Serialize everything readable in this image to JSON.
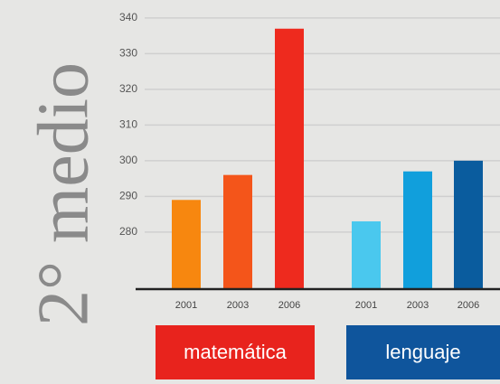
{
  "chart_data": {
    "type": "bar",
    "side_label": "2° medio",
    "categories": [
      "2001",
      "2003",
      "2006",
      "2001",
      "2003",
      "2006"
    ],
    "values": [
      289,
      296,
      337,
      283,
      297,
      300
    ],
    "colors": [
      "#f7870f",
      "#f4551a",
      "#ee2a1e",
      "#4ac8ee",
      "#119fdc",
      "#0a5c9e"
    ],
    "groups": [
      {
        "label": "matemática",
        "color": "#e8231d"
      },
      {
        "label": "lenguaje",
        "color": "#0f559c"
      }
    ],
    "ylim": [
      264,
      342
    ],
    "yticks": [
      280,
      290,
      300,
      310,
      320,
      330,
      340
    ],
    "grid": true
  }
}
